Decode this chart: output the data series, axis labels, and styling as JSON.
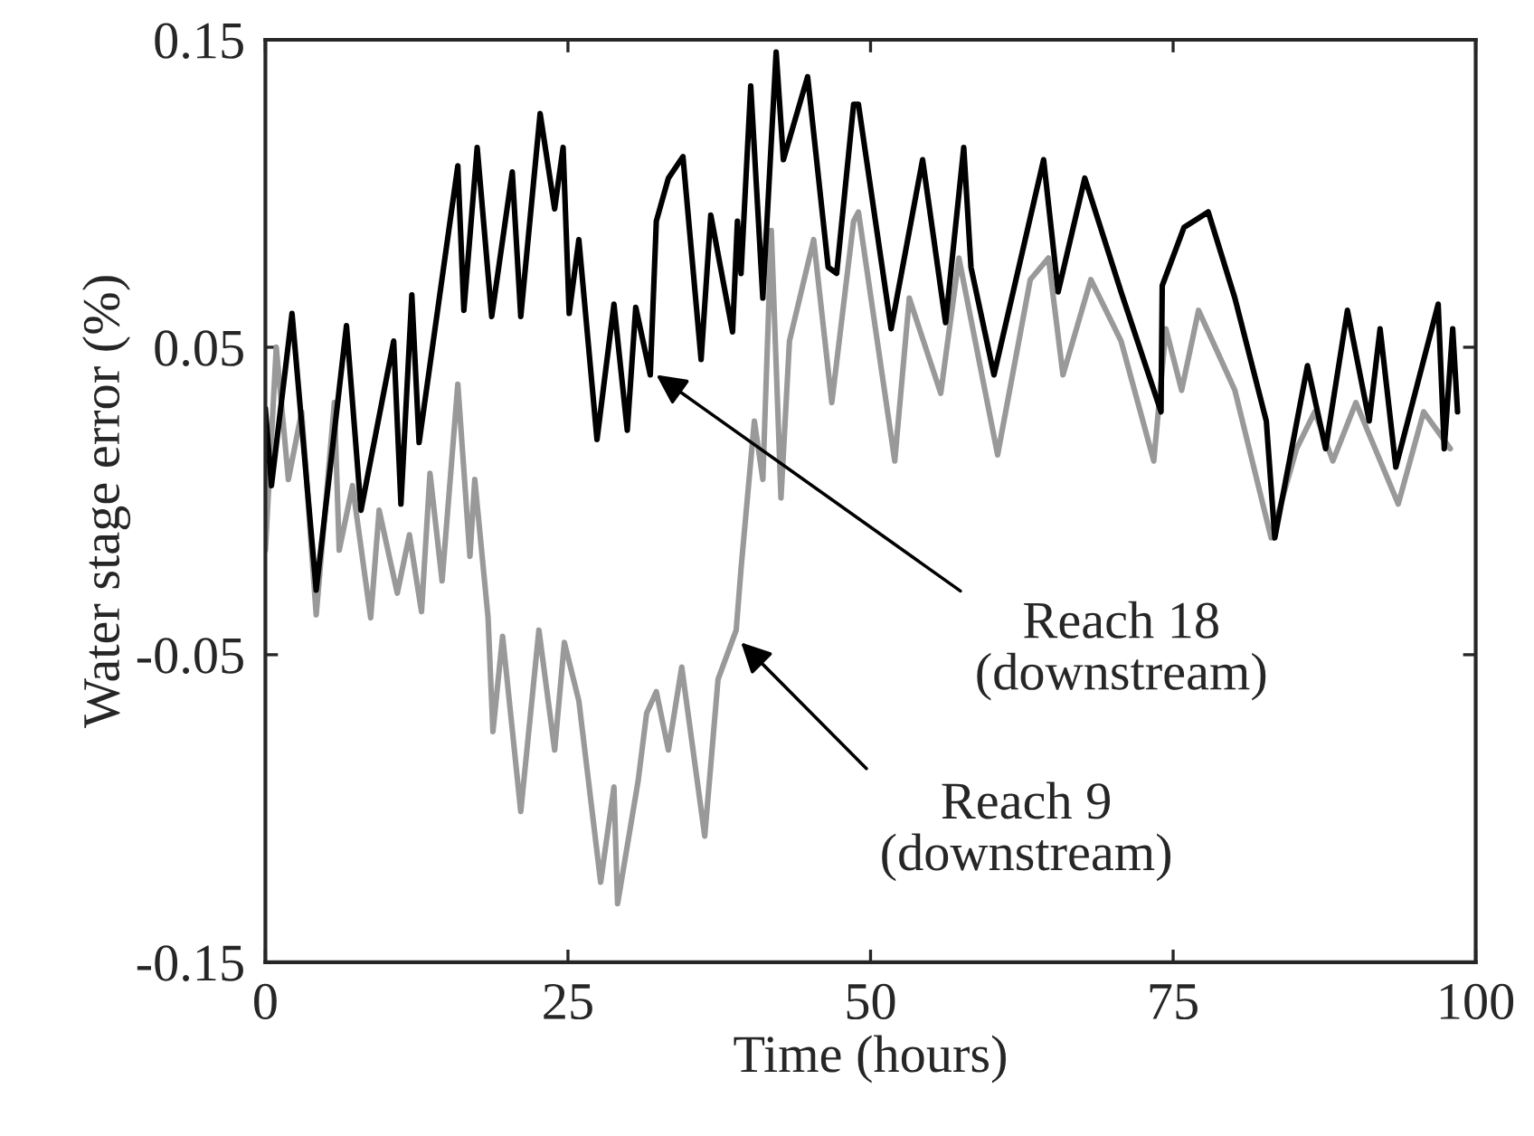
{
  "chart_data": {
    "type": "line",
    "xlabel": "Time (hours)",
    "ylabel": "Water stage error (%)",
    "xlim": [
      0,
      100
    ],
    "xticks": [
      0,
      25,
      50,
      75,
      100
    ],
    "ylim": [
      -0.15,
      0.15
    ],
    "yticks": [
      -0.15,
      -0.05,
      0.05,
      0.15
    ],
    "grid": false,
    "line_style": "solid",
    "marker": "none",
    "series": [
      {
        "color": "#999999",
        "x": [
          0,
          0.9,
          1.9,
          3.0,
          4.2,
          5.7,
          6.1,
          7.2,
          8.7,
          9.4,
          10.9,
          11.9,
          12.9,
          13.6,
          14.6,
          15.9,
          16.9,
          17.3,
          18.4,
          18.8,
          19.6,
          21.1,
          22.6,
          23.9,
          24.7,
          25.9,
          27.7,
          28.8,
          29.1,
          30.8,
          31.5,
          32.3,
          33.3,
          34.4,
          36.3,
          37.4,
          38.9,
          39.3,
          40.4,
          41.1,
          41.8,
          42.6,
          43.3,
          45.3,
          46.8,
          48.6,
          49,
          52.0,
          53.2,
          55.8,
          57.3,
          60.5,
          63.2,
          64.7,
          65.9,
          68.2,
          70.7,
          73.4,
          74.4,
          75.7,
          77.1,
          80.1,
          83.1,
          85.2,
          86.7,
          88.2,
          90.1,
          93.6,
          95.7,
          97.9
        ],
        "values": [
          -0.016,
          0.05,
          0.007,
          0.029,
          -0.037,
          0.032,
          -0.016,
          0.005,
          -0.038,
          -0.003,
          -0.03,
          -0.011,
          -0.036,
          0.009,
          -0.026,
          0.038,
          -0.018,
          0.007,
          -0.038,
          -0.075,
          -0.044,
          -0.101,
          -0.042,
          -0.081,
          -0.046,
          -0.065,
          -0.124,
          -0.093,
          -0.131,
          -0.091,
          -0.069,
          -0.062,
          -0.081,
          -0.054,
          -0.109,
          -0.058,
          -0.042,
          -0.022,
          0.026,
          0.007,
          0.088,
          0.001,
          0.052,
          0.085,
          0.032,
          0.091,
          0.094,
          0.013,
          0.066,
          0.035,
          0.079,
          0.015,
          0.072,
          0.079,
          0.041,
          0.072,
          0.052,
          0.013,
          0.056,
          0.036,
          0.062,
          0.036,
          -0.012,
          0.017,
          0.029,
          0.013,
          0.032,
          -0.001,
          0.029,
          0.017
        ]
      },
      {
        "color": "#000000",
        "x": [
          0,
          0.5,
          2.2,
          4.2,
          6.7,
          7.9,
          10.6,
          11.2,
          12.1,
          12.7,
          15.9,
          16.4,
          17.5,
          18.7,
          20.4,
          21.1,
          22.7,
          23.9,
          24.6,
          25.1,
          25.9,
          27.4,
          28.8,
          29.9,
          30.6,
          31.8,
          32.3,
          33.3,
          34.5,
          36.0,
          36.8,
          38.6,
          39.0,
          39.3,
          40.1,
          41.1,
          42.2,
          42.8,
          44.8,
          46.5,
          47.2,
          48.6,
          49.0,
          51.7,
          54.3,
          56.2,
          57.7,
          58.3,
          60.2,
          64.3,
          65.5,
          67.7,
          70.7,
          74.0,
          74.1,
          75.9,
          77.9,
          80.1,
          82.7,
          83.4,
          86.1,
          87.6,
          89.4,
          91.2,
          92.1,
          93.4,
          96.9,
          97.4,
          98.1,
          98.5
        ],
        "values": [
          0.03,
          0.005,
          0.061,
          -0.029,
          0.057,
          -0.003,
          0.052,
          -0.001,
          0.067,
          0.019,
          0.109,
          0.062,
          0.115,
          0.06,
          0.107,
          0.06,
          0.126,
          0.095,
          0.115,
          0.061,
          0.085,
          0.02,
          0.064,
          0.023,
          0.063,
          0.041,
          0.091,
          0.105,
          0.112,
          0.046,
          0.093,
          0.055,
          0.091,
          0.074,
          0.135,
          0.066,
          0.146,
          0.111,
          0.138,
          0.076,
          0.074,
          0.129,
          0.129,
          0.056,
          0.111,
          0.058,
          0.115,
          0.076,
          0.041,
          0.111,
          0.068,
          0.105,
          0.068,
          0.029,
          0.07,
          0.089,
          0.094,
          0.066,
          0.026,
          -0.012,
          0.044,
          0.017,
          0.062,
          0.026,
          0.056,
          0.011,
          0.064,
          0.017,
          0.056,
          0.029
        ]
      }
    ],
    "annotations": [
      {
        "text": "Reach 18\n(downstream)",
        "x": 32.3,
        "y": 0.041
      },
      {
        "text": "Reach 9\n(downstream)",
        "x": 39.3,
        "y": -0.046
      }
    ]
  }
}
